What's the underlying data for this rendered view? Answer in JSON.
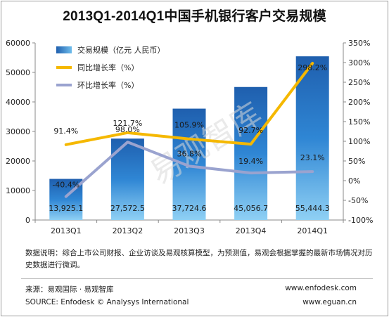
{
  "title": "2013Q1-2014Q1中国手机银行客户交易规模",
  "watermark": "易观智库",
  "note": "数据说明：综合上市公司财报、企业访谈及易观核算模型，为预测值，易观会根据掌握的最新市场情况对历史数据进行微调。",
  "source": {
    "cn_label": "来源：易观国际 · 易观智库",
    "cn_url": "www.enfodesk.com",
    "en_label": "SOURCE: Enfodesk © Analysys International",
    "en_url": "www.eguan.cn"
  },
  "chart_data": {
    "type": "bar+line",
    "categories": [
      "2013Q1",
      "2013Q2",
      "2013Q3",
      "2013Q4",
      "2014Q1"
    ],
    "left_axis": {
      "min": 0,
      "max": 60000,
      "ticks": [
        "0",
        "10000",
        "20000",
        "30000",
        "40000",
        "50000",
        "60000"
      ]
    },
    "right_axis": {
      "min": -100,
      "max": 350,
      "ticks": [
        "-100%",
        "-50%",
        "0%",
        "50%",
        "100%",
        "150%",
        "200%",
        "250%",
        "300%",
        "350%"
      ]
    },
    "series": [
      {
        "name": "交易规模（亿元 人民币）",
        "kind": "bar",
        "axis": "left",
        "color": "#2c7bc9",
        "values": [
          13925.1,
          27572.5,
          37724.6,
          45056.7,
          55444.3
        ],
        "labels": [
          "13,925.1",
          "27,572.5",
          "37,724.6",
          "45,056.7",
          "55,444.3"
        ]
      },
      {
        "name": "同比增长率（%）",
        "kind": "line",
        "axis": "right",
        "color": "#f5b800",
        "values": [
          91.4,
          121.7,
          105.9,
          92.7,
          298.2
        ],
        "labels": [
          "91.4%",
          "121.7%",
          "105.9%",
          "92.7%",
          "298.2%"
        ]
      },
      {
        "name": "环比增长率（%）",
        "kind": "line",
        "axis": "right",
        "color": "#9aa3cf",
        "values": [
          -40.4,
          98.0,
          36.8,
          19.4,
          23.1
        ],
        "labels": [
          "-40.4%",
          "98.0%",
          "36.8%",
          "19.4%",
          "23.1%"
        ]
      }
    ],
    "legend_position": "top-left",
    "grid": false
  }
}
